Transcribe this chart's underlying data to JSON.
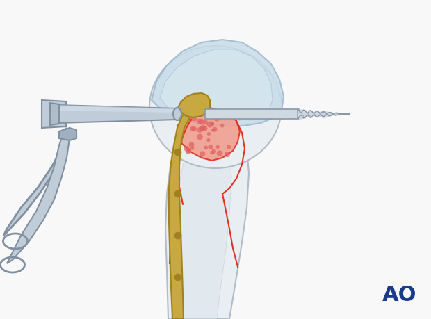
{
  "background_color": "#f8f8f8",
  "ao_text": "AO",
  "ao_color": "#1a3a8a",
  "ao_fontsize": 22,
  "bone_fill": "#e8eef2",
  "bone_outline": "#b0bcc8",
  "cartilage_fill": "#c8dce8",
  "cartilage_outline": "#9ab8cc",
  "plate_color": "#c8a840",
  "plate_outline": "#a08020",
  "fracture_fill": "#f0a090",
  "fracture_dots": "#e06060",
  "fracture_line": "#e03020",
  "drill_body": "#d0d8e0",
  "drill_outline": "#8898a8",
  "instrument_fill": "#c0ccd8",
  "instrument_outline": "#8090a0",
  "screw_color": "#d0d8e0",
  "screw_outline": "#8898a8"
}
